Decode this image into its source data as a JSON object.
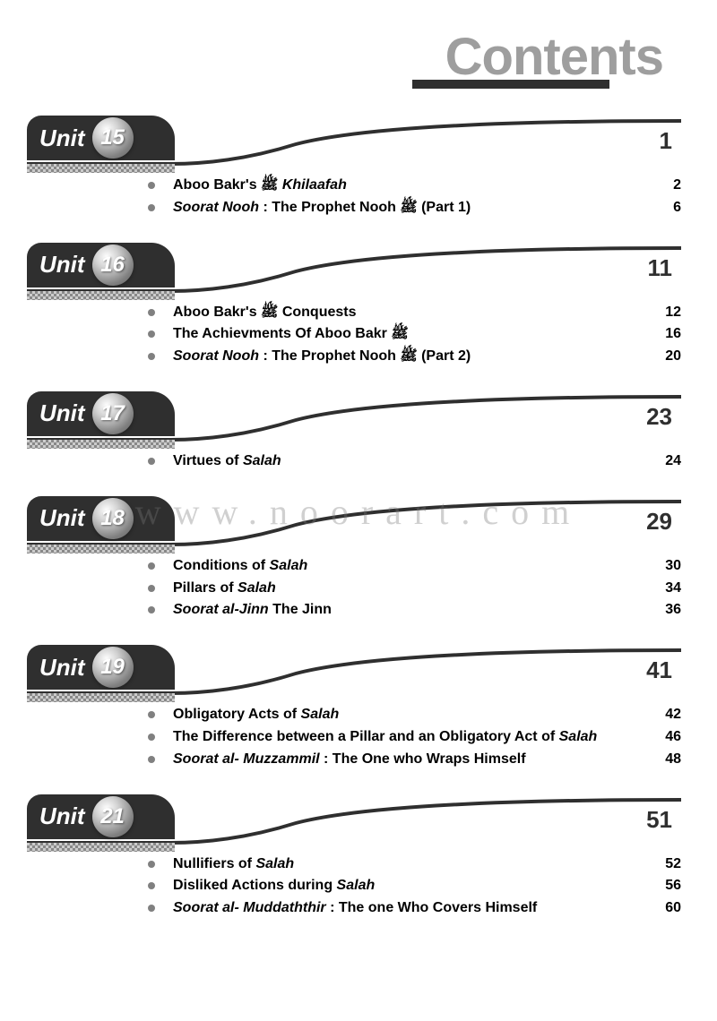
{
  "header": {
    "title": "Contents",
    "title_color": "#9e9e9e",
    "underline_color": "#2f2f2f"
  },
  "watermark": "www.noorart.com",
  "theme": {
    "tab_bg": "#2f2f2f",
    "swoosh_color": "#2f2f2f",
    "page_num_color": "#2f2f2f"
  },
  "units": [
    {
      "label": "Unit",
      "number": "15",
      "start_page": "1",
      "items": [
        {
          "html": "<b>Aboo Bakr's ﷺ</b> <i>Khilaafah</i>",
          "page": "2"
        },
        {
          "html": "<i>Soorat Nooh</i> <b>: The Prophet Nooh ﷺ (Part 1)</b>",
          "page": "6"
        }
      ]
    },
    {
      "label": "Unit",
      "number": "16",
      "start_page": "11",
      "items": [
        {
          "html": "<b>Aboo Bakr's ﷺ Conquests</b>",
          "page": "12"
        },
        {
          "html": "<b>The Achievments Of Aboo Bakr ﷺ</b>",
          "page": "16"
        },
        {
          "html": "<i>Soorat Nooh</i> <b>: The Prophet Nooh ﷺ (Part 2)</b>",
          "page": "20"
        }
      ]
    },
    {
      "label": "Unit",
      "number": "17",
      "start_page": "23",
      "items": [
        {
          "html": "<b>Virtues of</b> <i>Salah</i>",
          "page": "24"
        }
      ]
    },
    {
      "label": "Unit",
      "number": "18",
      "start_page": "29",
      "items": [
        {
          "html": "<b>Conditions of</b> <i>Salah</i>",
          "page": "30"
        },
        {
          "html": "<b>Pillars of</b> <i>Salah</i>",
          "page": "34"
        },
        {
          "html": "<i>Soorat al-Jinn</i> <b>The Jinn</b>",
          "page": "36"
        }
      ]
    },
    {
      "label": "Unit",
      "number": "19",
      "start_page": "41",
      "items": [
        {
          "html": "<b>Obligatory Acts of</b> <i>Salah</i>",
          "page": "42"
        },
        {
          "html": "<b>The Difference between a Pillar and an Obligatory Act of</b> <i>Salah</i>",
          "page": "46"
        },
        {
          "html": "<i>Soorat al- Muzzammil</i> <b>: The One who Wraps Himself</b>",
          "page": "48"
        }
      ]
    },
    {
      "label": "Unit",
      "number": "21",
      "start_page": "51",
      "items": [
        {
          "html": "<b>Nullifiers of</b> <i>Salah</i>",
          "page": "52"
        },
        {
          "html": "<b>Disliked Actions during</b> <i>Salah</i>",
          "page": "56"
        },
        {
          "html": "<i>Soorat al- Muddaththir</i> <b>: The one Who Covers Himself</b>",
          "page": "60"
        }
      ]
    }
  ]
}
